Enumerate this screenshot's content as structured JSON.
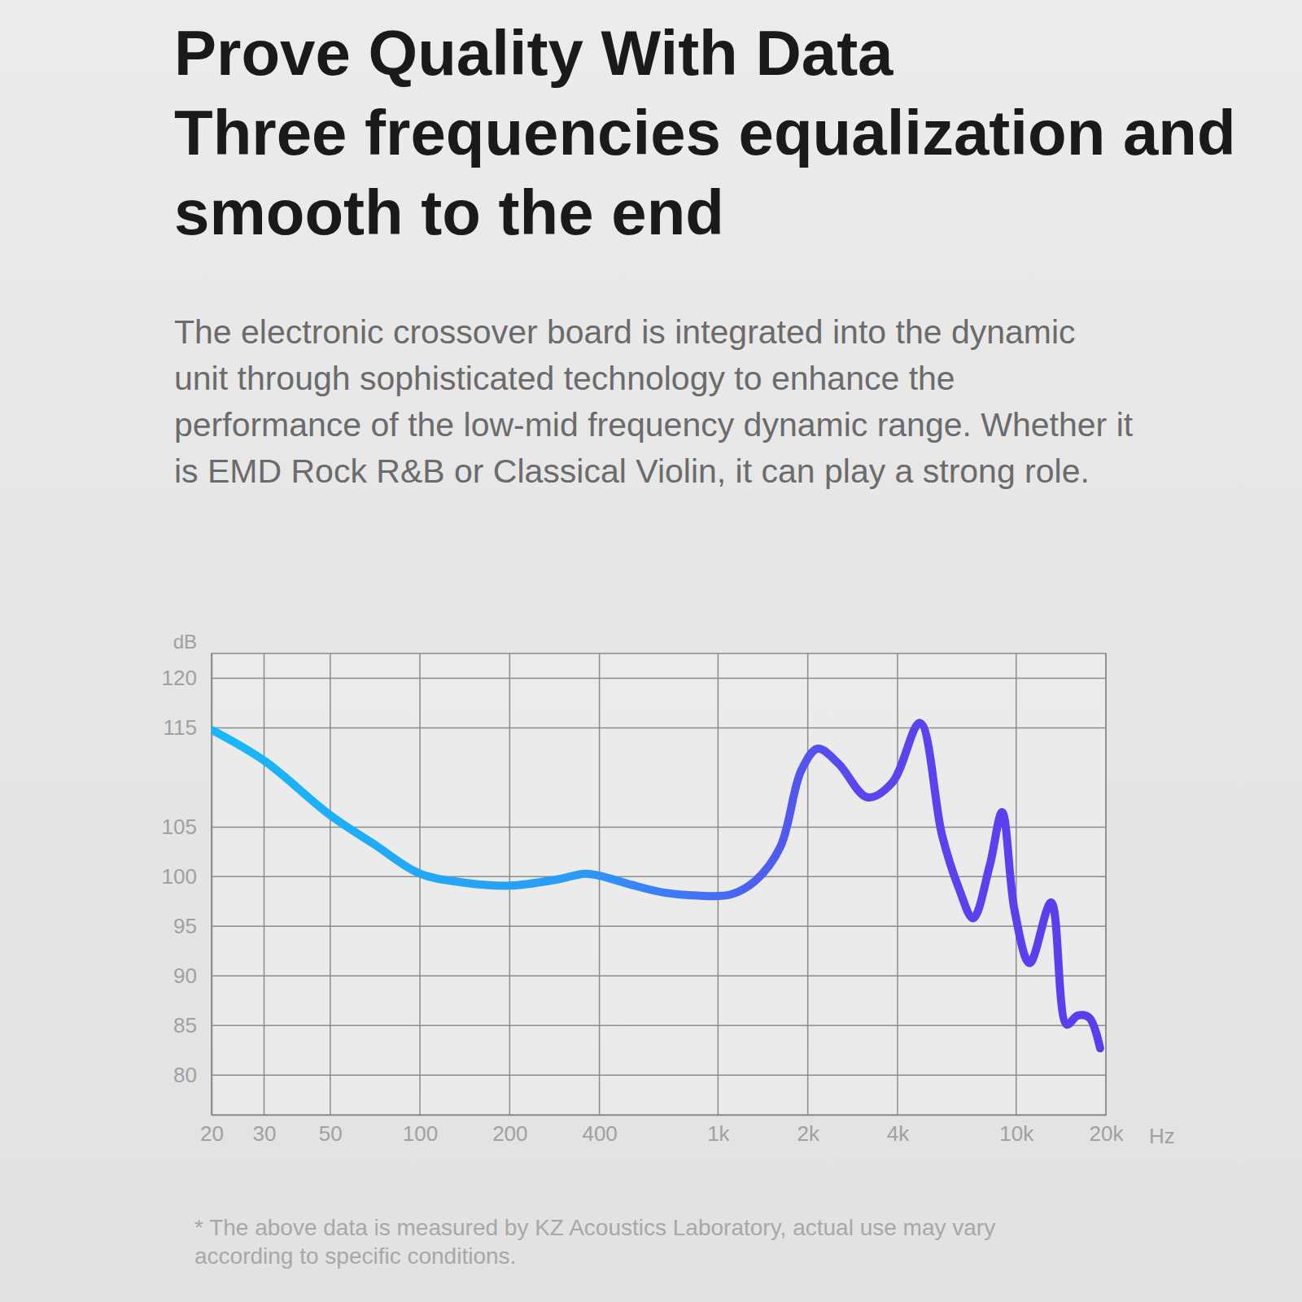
{
  "chart_data": {
    "type": "line",
    "title": "Prove Quality With Data",
    "subtitle": "Three frequencies equalization and smooth to the end",
    "annotations": [
      "The electronic crossover board is integrated into the dynamic unit through sophisticated technology to enhance the performance of the low-mid frequency dynamic range. Whether it is EMD Rock R&B or Classical Violin, it can play a strong role.",
      "* The above data is measured by KZ Acoustics Laboratory, actual use may vary according to specific conditions."
    ],
    "ylabel": "dB",
    "xlabel": "Hz",
    "log": "x",
    "grid": true,
    "xlim": [
      20,
      20000
    ],
    "xticks": [
      20,
      30,
      50,
      100,
      200,
      400,
      {
        "value": 1000,
        "label": "1k"
      },
      {
        "value": 2000,
        "label": "2k"
      },
      {
        "value": 4000,
        "label": "4k"
      },
      {
        "value": 10000,
        "label": "10k"
      },
      {
        "value": 20000,
        "label": "20k"
      }
    ],
    "ylim": [
      76,
      122.5
    ],
    "yticks": [
      120,
      115,
      105,
      100,
      95,
      90,
      85,
      80
    ],
    "x": [
      20,
      30,
      50,
      70,
      100,
      141,
      200,
      286,
      358,
      400,
      510,
      659,
      852,
      1101,
      1335,
      1618,
      1901,
      2159,
      2535,
      3170,
      3845,
      4754,
      5650,
      6430,
      7170,
      8150,
      8970,
      9890,
      11100,
      13100,
      14780,
      16070,
      17580,
      19130
    ],
    "values": [
      114.8,
      111.7,
      106.2,
      103.3,
      100.3,
      99.4,
      99.1,
      99.7,
      100.3,
      100.1,
      99.2,
      98.4,
      98.1,
      98.2,
      99.6,
      103.0,
      110.7,
      112.9,
      111.4,
      108.0,
      109.5,
      115.5,
      104.1,
      98.8,
      95.8,
      101.1,
      106.5,
      96.5,
      91.3,
      97.4,
      85.1,
      86.0,
      85.8,
      82.7
    ]
  }
}
